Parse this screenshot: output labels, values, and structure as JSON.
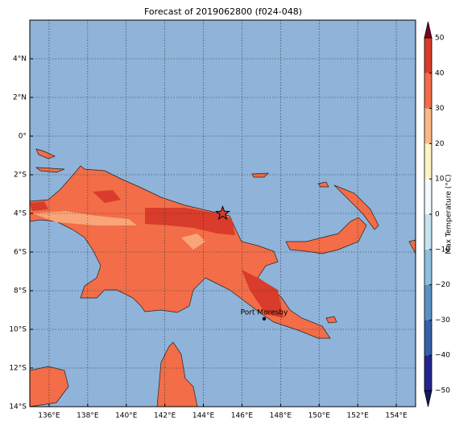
{
  "title": "Forecast of 2019062800 (f024-048)",
  "map": {
    "xlim": [
      135,
      155
    ],
    "ylim": [
      -14,
      6
    ],
    "xticks": [
      {
        "value": 136,
        "label": "136°E"
      },
      {
        "value": 138,
        "label": "138°E"
      },
      {
        "value": 140,
        "label": "140°E"
      },
      {
        "value": 142,
        "label": "142°E"
      },
      {
        "value": 144,
        "label": "144°E"
      },
      {
        "value": 146,
        "label": "146°E"
      },
      {
        "value": 148,
        "label": "148°E"
      },
      {
        "value": 150,
        "label": "150°E"
      },
      {
        "value": 152,
        "label": "152°E"
      },
      {
        "value": 154,
        "label": "154°E"
      }
    ],
    "yticks": [
      {
        "value": 4,
        "label": "4°N"
      },
      {
        "value": 2,
        "label": "2°N"
      },
      {
        "value": 0,
        "label": "0°"
      },
      {
        "value": -2,
        "label": "2°S"
      },
      {
        "value": -4,
        "label": "4°S"
      },
      {
        "value": -6,
        "label": "6°S"
      },
      {
        "value": -8,
        "label": "8°S"
      },
      {
        "value": -10,
        "label": "10°S"
      },
      {
        "value": -12,
        "label": "12°S"
      },
      {
        "value": -14,
        "label": "14°S"
      }
    ],
    "grid": true,
    "ocean_color": "#8fb3d9"
  },
  "markers": {
    "star": {
      "lon": 145,
      "lat": -4
    },
    "city": {
      "label": "Port Moresby",
      "lon": 147.15,
      "lat": -9.45
    }
  },
  "colorbar": {
    "label": "Max Temperature (°C)",
    "ticks": [
      {
        "value": -50,
        "label": "−50"
      },
      {
        "value": -40,
        "label": "−40"
      },
      {
        "value": -30,
        "label": "−30"
      },
      {
        "value": -20,
        "label": "−20"
      },
      {
        "value": -10,
        "label": "−10"
      },
      0,
      10,
      20,
      30,
      40,
      50
    ],
    "colors": [
      "#24258c",
      "#3461a8",
      "#5a91c3",
      "#8fbfdd",
      "#c6e4f0",
      "#f4fafc",
      "#fef5c3",
      "#fbb986",
      "#f26d48",
      "#d93c2a"
    ],
    "under_color": "#141a5e",
    "over_color": "#82001f"
  }
}
